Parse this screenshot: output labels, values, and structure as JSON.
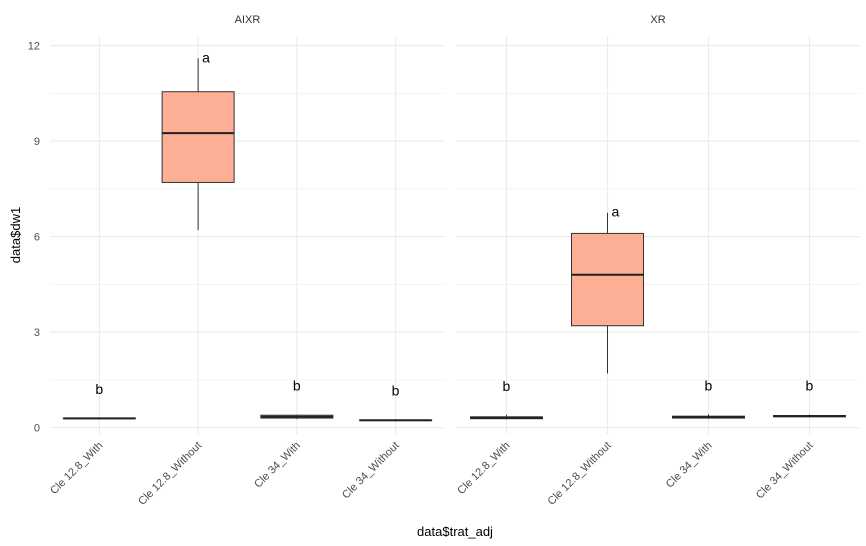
{
  "chart_data": {
    "type": "boxplot",
    "xlabel": "data$trat_adj",
    "ylabel": "data$dw1",
    "ylim": [
      -0.2,
      12.3
    ],
    "yticks": [
      0,
      3,
      6,
      9,
      12
    ],
    "grid": true,
    "fill_color": "#FCAF94",
    "categories": [
      "Cle 12.8_With",
      "Cle 12.8_Without",
      "Cle 34_With",
      "Cle 34_Without"
    ],
    "panels": [
      {
        "title": "AIXR",
        "boxes": [
          {
            "category": "Cle 12.8_With",
            "min": 0.28,
            "q1": 0.28,
            "median": 0.29,
            "q3": 0.3,
            "max": 0.3,
            "label": "b"
          },
          {
            "category": "Cle 12.8_Without",
            "min": 6.2,
            "q1": 7.7,
            "median": 9.25,
            "q3": 10.55,
            "max": 11.6,
            "label": "a"
          },
          {
            "category": "Cle 34_With",
            "min": 0.27,
            "q1": 0.3,
            "median": 0.34,
            "q3": 0.39,
            "max": 0.41,
            "label": "b"
          },
          {
            "category": "Cle 34_Without",
            "min": 0.2,
            "q1": 0.22,
            "median": 0.23,
            "q3": 0.24,
            "max": 0.26,
            "label": "b"
          }
        ]
      },
      {
        "title": "XR",
        "boxes": [
          {
            "category": "Cle 12.8_With",
            "min": 0.26,
            "q1": 0.28,
            "median": 0.31,
            "q3": 0.34,
            "max": 0.4,
            "label": "b"
          },
          {
            "category": "Cle 12.8_Without",
            "min": 1.7,
            "q1": 3.2,
            "median": 4.8,
            "q3": 6.1,
            "max": 6.75,
            "label": "a"
          },
          {
            "category": "Cle 34_With",
            "min": 0.28,
            "q1": 0.3,
            "median": 0.33,
            "q3": 0.36,
            "max": 0.42,
            "label": "b"
          },
          {
            "category": "Cle 34_Without",
            "min": 0.32,
            "q1": 0.34,
            "median": 0.36,
            "q3": 0.38,
            "max": 0.41,
            "label": "b"
          }
        ]
      }
    ]
  }
}
